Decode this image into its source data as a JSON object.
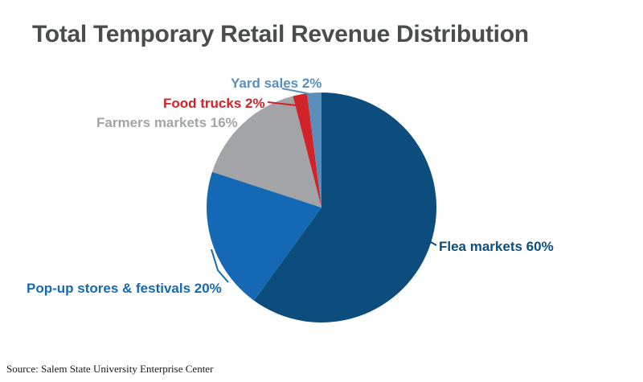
{
  "page": {
    "title": "Total Temporary Retail Revenue Distribution",
    "source_note": "Source: Salem State University Enterprise Center"
  },
  "chart_data": {
    "type": "pie",
    "title": "Total Temporary Retail Revenue Distribution",
    "direction": "clockwise",
    "start_angle_deg": 0,
    "legend_position": "callout-labels",
    "slices": [
      {
        "label": "Flea markets",
        "value_pct": 60,
        "callout": "Flea markets 60%",
        "color": "#0c4d7e"
      },
      {
        "label": "Pop-up stores & festivals",
        "value_pct": 20,
        "callout": "Pop-up stores & festivals 20%",
        "color": "#1569b4"
      },
      {
        "label": "Farmers markets",
        "value_pct": 16,
        "callout": "Farmers markets 16%",
        "color": "#a2a4a7"
      },
      {
        "label": "Food trucks",
        "value_pct": 2,
        "callout": "Food trucks 2%",
        "color": "#d2232a"
      },
      {
        "label": "Yard sales",
        "value_pct": 2,
        "callout": "Yard sales 2%",
        "color": "#5b8fbb"
      }
    ],
    "source": "Source: Salem State University Enterprise Center"
  }
}
